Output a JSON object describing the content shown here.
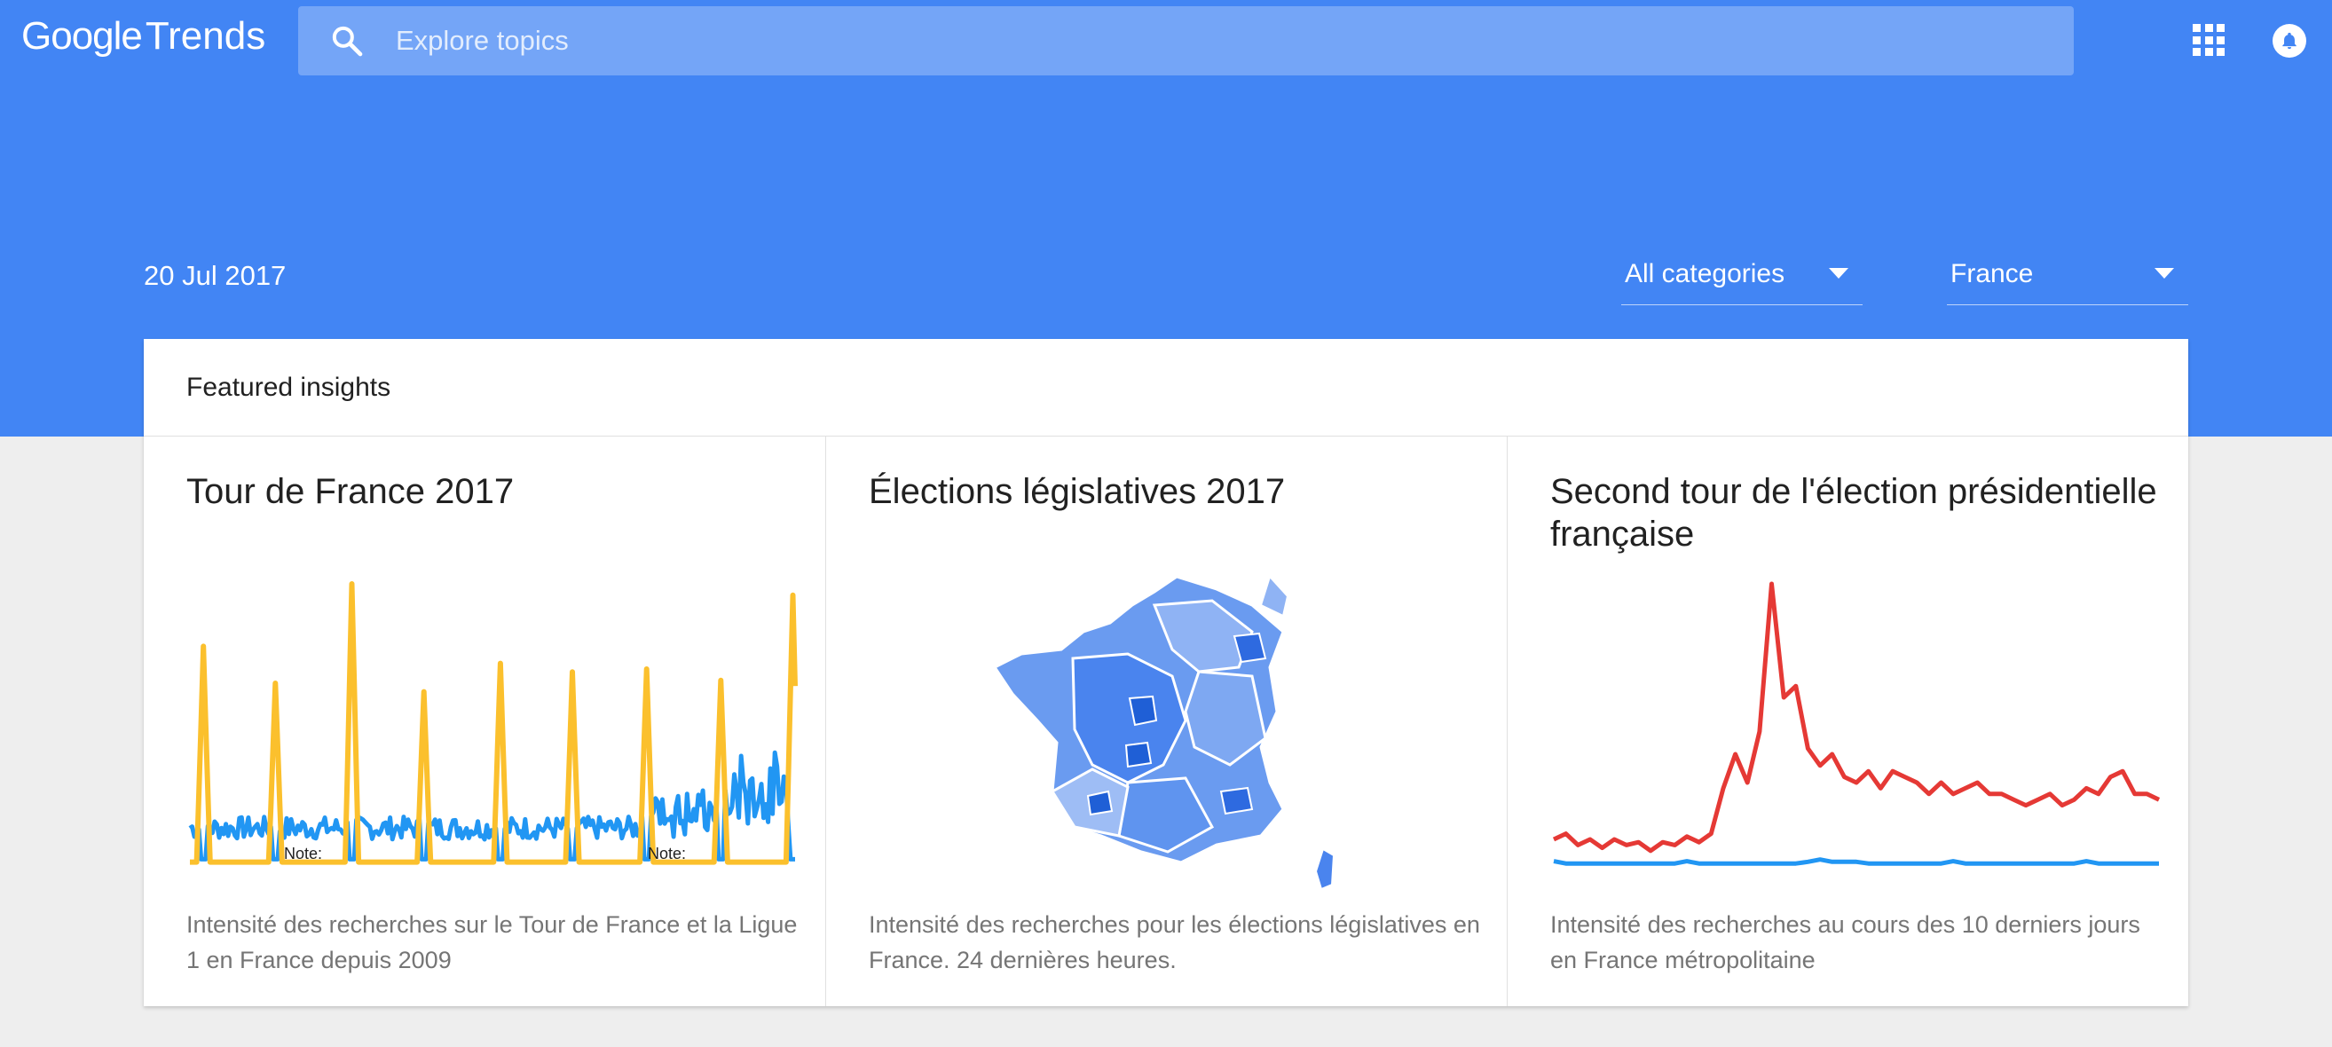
{
  "header": {
    "logo_google": "Google",
    "logo_trends": "Trends",
    "search_placeholder": "Explore topics",
    "date": "20 Jul 2017",
    "category_value": "All categories",
    "region_value": "France"
  },
  "featured": {
    "title": "Featured insights",
    "cards": [
      {
        "title": "Tour de France 2017",
        "description": "Intensité des recherches sur le Tour de France et la Ligue 1 en France depuis 2009",
        "chart_notes": [
          "Note:",
          "Note:"
        ]
      },
      {
        "title": "Élections législatives 2017",
        "description": "Intensité des recherches pour les élections législatives en France. 24 dernières heures."
      },
      {
        "title": "Second tour de l'élection présidentielle française",
        "description": "Intensité des recherches au cours des 10 derniers jours en France métropolitaine"
      }
    ]
  },
  "colors": {
    "brand_blue": "#4285f4",
    "series_yellow": "#fbc02d",
    "series_blue": "#2196f3",
    "series_red": "#e53935"
  }
}
